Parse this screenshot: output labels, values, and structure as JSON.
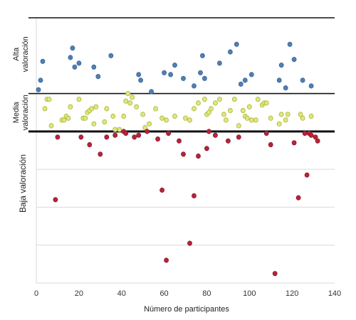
{
  "chart_data": {
    "type": "scatter",
    "title": "",
    "xlabel": "Número de participantes",
    "ylabel": "",
    "xlim": [
      0,
      140
    ],
    "xticks": [
      "0",
      "20",
      "40",
      "60",
      "80",
      "100",
      "120",
      "140"
    ],
    "y_scale": "relative (unlabeled)",
    "ylim": [
      0,
      7.5
    ],
    "grid": "horizontal",
    "legend": "none",
    "bands": [
      {
        "label_line1": "Alta",
        "label_line2": "valoración",
        "from": 5,
        "to": 7
      },
      {
        "label_line1": "Media",
        "label_line2": "valoración",
        "from": 4,
        "to": 5
      },
      {
        "label_line1": "Baja valoración",
        "label_line2": "",
        "from": 0,
        "to": 4
      }
    ],
    "band_lines": [
      7,
      5,
      4
    ],
    "series": [
      {
        "color": "#4f7fb5",
        "stroke": "#3a6596",
        "points": [
          [
            1,
            5.1
          ],
          [
            2,
            5.35
          ],
          [
            3,
            5.85
          ],
          [
            16,
            5.95
          ],
          [
            17,
            6.2
          ],
          [
            18,
            5.7
          ],
          [
            20,
            5.8
          ],
          [
            27,
            5.7
          ],
          [
            29,
            5.45
          ],
          [
            35,
            6.0
          ],
          [
            48,
            5.5
          ],
          [
            49,
            5.35
          ],
          [
            54,
            5.05
          ],
          [
            60,
            5.55
          ],
          [
            63,
            5.5
          ],
          [
            65,
            5.75
          ],
          [
            69,
            5.4
          ],
          [
            74,
            5.2
          ],
          [
            77,
            5.55
          ],
          [
            78,
            6.0
          ],
          [
            79,
            5.4
          ],
          [
            86,
            5.8
          ],
          [
            91,
            6.1
          ],
          [
            94,
            6.3
          ],
          [
            96,
            5.25
          ],
          [
            98,
            5.35
          ],
          [
            101,
            5.5
          ],
          [
            114,
            5.35
          ],
          [
            115,
            5.75
          ],
          [
            117,
            5.15
          ],
          [
            119,
            6.3
          ],
          [
            121,
            5.9
          ],
          [
            125,
            5.35
          ],
          [
            129,
            5.2
          ]
        ]
      },
      {
        "color": "#dfe680",
        "stroke": "#aab532",
        "points": [
          [
            4,
            4.6
          ],
          [
            5,
            4.85
          ],
          [
            6,
            4.85
          ],
          [
            7,
            4.15
          ],
          [
            12,
            4.3
          ],
          [
            13,
            4.3
          ],
          [
            14,
            4.4
          ],
          [
            15,
            4.35
          ],
          [
            16,
            4.65
          ],
          [
            20,
            4.85
          ],
          [
            22,
            4.35
          ],
          [
            23,
            4.35
          ],
          [
            24,
            4.5
          ],
          [
            25,
            4.55
          ],
          [
            26,
            4.6
          ],
          [
            27,
            4.2
          ],
          [
            28,
            4.65
          ],
          [
            32,
            4.25
          ],
          [
            33,
            4.6
          ],
          [
            36,
            4.4
          ],
          [
            37,
            4.05
          ],
          [
            39,
            4.05
          ],
          [
            41,
            4.4
          ],
          [
            42,
            4.8
          ],
          [
            43,
            5.0
          ],
          [
            44,
            4.75
          ],
          [
            45,
            4.9
          ],
          [
            47,
            4.65
          ],
          [
            50,
            4.45
          ],
          [
            51,
            4.1
          ],
          [
            53,
            4.2
          ],
          [
            56,
            4.6
          ],
          [
            59,
            4.35
          ],
          [
            61,
            4.3
          ],
          [
            65,
            4.4
          ],
          [
            70,
            4.35
          ],
          [
            72,
            4.3
          ],
          [
            74,
            4.6
          ],
          [
            76,
            4.75
          ],
          [
            79,
            4.85
          ],
          [
            80,
            4.45
          ],
          [
            81,
            4.5
          ],
          [
            82,
            4.6
          ],
          [
            84,
            4.75
          ],
          [
            86,
            4.85
          ],
          [
            88,
            4.45
          ],
          [
            89,
            4.3
          ],
          [
            91,
            4.55
          ],
          [
            93,
            4.85
          ],
          [
            95,
            4.15
          ],
          [
            97,
            4.55
          ],
          [
            98,
            4.4
          ],
          [
            99,
            4.35
          ],
          [
            100,
            4.65
          ],
          [
            101,
            4.3
          ],
          [
            103,
            4.3
          ],
          [
            104,
            4.85
          ],
          [
            106,
            4.7
          ],
          [
            107,
            4.75
          ],
          [
            108,
            4.75
          ],
          [
            110,
            4.35
          ],
          [
            114,
            4.2
          ],
          [
            115,
            4.45
          ],
          [
            117,
            4.3
          ],
          [
            118,
            4.45
          ],
          [
            124,
            4.45
          ],
          [
            125,
            4.35
          ],
          [
            129,
            4.4
          ]
        ]
      },
      {
        "color": "#b8233a",
        "stroke": "#8a1a2b",
        "points": [
          [
            9,
            2.2
          ],
          [
            10,
            3.85
          ],
          [
            21,
            3.85
          ],
          [
            25,
            3.65
          ],
          [
            30,
            3.4
          ],
          [
            33,
            3.85
          ],
          [
            37,
            3.9
          ],
          [
            41,
            4.0
          ],
          [
            42,
            3.95
          ],
          [
            46,
            3.85
          ],
          [
            48,
            3.9
          ],
          [
            52,
            4.0
          ],
          [
            57,
            3.8
          ],
          [
            59,
            2.45
          ],
          [
            61,
            0.6
          ],
          [
            62,
            3.95
          ],
          [
            67,
            3.75
          ],
          [
            69,
            3.4
          ],
          [
            72,
            1.05
          ],
          [
            74,
            2.3
          ],
          [
            76,
            3.35
          ],
          [
            80,
            3.55
          ],
          [
            81,
            4.0
          ],
          [
            84,
            3.9
          ],
          [
            90,
            3.75
          ],
          [
            95,
            3.85
          ],
          [
            108,
            3.95
          ],
          [
            110,
            3.65
          ],
          [
            112,
            0.25
          ],
          [
            121,
            3.7
          ],
          [
            123,
            2.25
          ],
          [
            126,
            3.95
          ],
          [
            127,
            2.85
          ],
          [
            128,
            3.95
          ],
          [
            129,
            3.9
          ],
          [
            131,
            3.85
          ],
          [
            132,
            3.75
          ]
        ]
      }
    ]
  }
}
